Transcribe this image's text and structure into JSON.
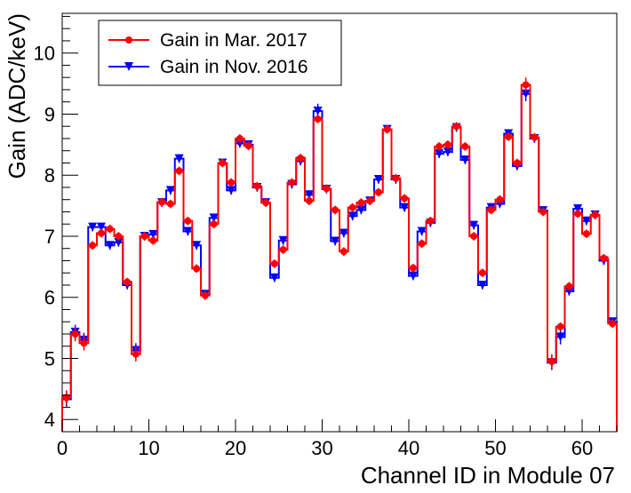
{
  "chart_data": {
    "type": "line",
    "xlabel": "Channel ID in Module 07",
    "ylabel": "Gain (ADC/keV)",
    "xlim": [
      0,
      64
    ],
    "ylim": [
      3.8,
      10.65
    ],
    "x_ticks": [
      0,
      10,
      20,
      30,
      40,
      50,
      60
    ],
    "y_ticks": [
      4,
      5,
      6,
      7,
      8,
      9,
      10
    ],
    "grid": false,
    "legend_position": "top-left",
    "x": [
      0,
      1,
      2,
      3,
      4,
      5,
      6,
      7,
      8,
      9,
      10,
      11,
      12,
      13,
      14,
      15,
      16,
      17,
      18,
      19,
      20,
      21,
      22,
      23,
      24,
      25,
      26,
      27,
      28,
      29,
      30,
      31,
      32,
      33,
      34,
      35,
      36,
      37,
      38,
      39,
      40,
      41,
      42,
      43,
      44,
      45,
      46,
      47,
      48,
      49,
      50,
      51,
      52,
      53,
      54,
      55,
      56,
      57,
      58,
      59,
      60,
      61,
      62,
      63
    ],
    "series": [
      {
        "name": "Gain in Mar. 2017",
        "color": "#ff0000",
        "marker": "circle",
        "values": [
          4.36,
          5.4,
          5.25,
          6.85,
          7.05,
          7.12,
          7.0,
          6.25,
          5.07,
          7.0,
          6.93,
          7.56,
          7.53,
          8.07,
          7.25,
          6.47,
          6.03,
          7.2,
          8.2,
          7.88,
          8.6,
          8.48,
          7.82,
          7.55,
          6.55,
          6.78,
          7.88,
          8.28,
          7.58,
          8.92,
          7.78,
          7.43,
          6.75,
          7.47,
          7.55,
          7.58,
          7.72,
          8.75,
          7.95,
          7.62,
          6.48,
          6.88,
          7.25,
          8.47,
          8.5,
          8.8,
          8.47,
          7.0,
          6.4,
          7.43,
          7.6,
          8.63,
          8.2,
          9.48,
          8.62,
          7.4,
          4.95,
          5.52,
          6.18,
          7.37,
          7.04,
          7.35,
          6.64,
          5.57
        ]
      },
      {
        "name": "Gain in Nov. 2016",
        "color": "#0000ff",
        "marker": "triangle-down",
        "values": [
          4.33,
          5.43,
          5.3,
          7.15,
          7.15,
          6.85,
          6.9,
          6.2,
          5.13,
          7.0,
          7.03,
          7.55,
          7.75,
          8.27,
          7.08,
          6.85,
          6.05,
          7.3,
          8.2,
          7.75,
          8.52,
          8.5,
          7.8,
          7.55,
          6.32,
          6.93,
          7.85,
          8.23,
          7.68,
          9.05,
          7.77,
          6.92,
          7.05,
          7.33,
          7.43,
          7.58,
          7.93,
          8.75,
          7.93,
          7.47,
          6.35,
          7.08,
          7.22,
          8.35,
          8.38,
          8.78,
          8.25,
          7.18,
          6.2,
          7.47,
          7.53,
          8.68,
          8.15,
          9.33,
          8.6,
          7.42,
          4.93,
          5.35,
          6.1,
          7.45,
          7.25,
          7.35,
          6.6,
          5.6
        ]
      }
    ]
  }
}
